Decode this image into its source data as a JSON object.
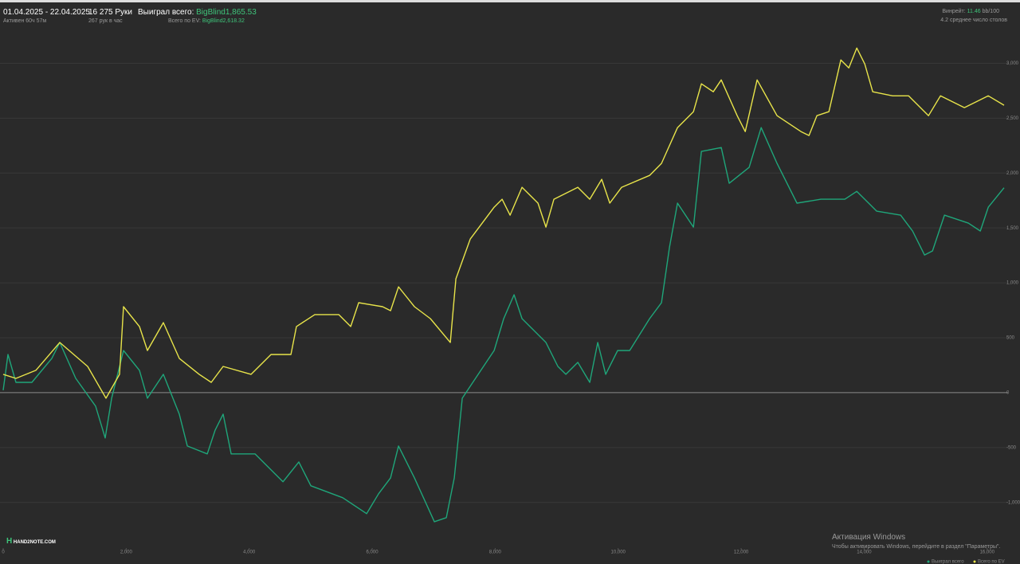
{
  "header": {
    "date_range": "01.04.2025 - 22.04.2025",
    "active": "Активен 60ч 57м",
    "hands": "16 275 Руки",
    "hands_per_hour": "267 рук в час",
    "won_label": "Выиграл всего:",
    "won_value": "BigBlind1,865.53",
    "ev_label": "Всего по EV:",
    "ev_value": "BigBlind2,618.32",
    "winrate_label": "Винрейт:",
    "winrate_value": "11.46",
    "winrate_unit": "bb/100",
    "tables": "4.2 среднее число столов"
  },
  "chart_data": {
    "type": "line",
    "xlim": [
      0,
      16340
    ],
    "ylim": [
      -1430,
      3250
    ],
    "xticks": [
      0,
      {
        "value": 2000,
        "label": "2,000"
      },
      {
        "value": 4000,
        "label": "4,000"
      },
      {
        "value": 6000,
        "label": "6,000"
      },
      {
        "value": 8000,
        "label": "8,000"
      },
      {
        "value": 10000,
        "label": "10,000"
      },
      {
        "value": 12000,
        "label": "12,000"
      },
      {
        "value": 14000,
        "label": "14,000"
      },
      {
        "value": 16000,
        "label": "16,000"
      }
    ],
    "yticks": [
      {
        "value": -1000,
        "label": "-1,000"
      },
      -500,
      0,
      500,
      {
        "value": 1000,
        "label": "1,000"
      },
      {
        "value": 1500,
        "label": "1,500"
      },
      {
        "value": 2000,
        "label": "2,000"
      },
      {
        "value": 2500,
        "label": "2,500"
      },
      {
        "value": 3000,
        "label": "3,000"
      }
    ],
    "grid": true,
    "series": [
      {
        "name": "Выиграл всего",
        "color": "#1fa67a",
        "x": [
          0,
          78,
          207,
          467,
          791,
          920,
          1179,
          1503,
          1659,
          1763,
          1957,
          2216,
          2346,
          2605,
          2864,
          2994,
          3318,
          3447,
          3577,
          3707,
          4095,
          4549,
          4808,
          5003,
          5521,
          5910,
          6104,
          6299,
          6428,
          6688,
          7011,
          7206,
          7335,
          7465,
          7724,
          7984,
          8139,
          8307,
          8437,
          8826,
          9020,
          9150,
          9344,
          9539,
          9668,
          9798,
          9992,
          10187,
          10511,
          10705,
          10835,
          10965,
          11224,
          11354,
          11677,
          11806,
          12130,
          12325,
          12584,
          12908,
          13297,
          13686,
          13880,
          14204,
          14593,
          14788,
          14982,
          15112,
          15306,
          15695,
          15889,
          16019,
          16275
        ],
        "values": [
          22,
          348,
          94,
          94,
          312,
          457,
          131,
          -123,
          -413,
          -51,
          384,
          203,
          -51,
          167,
          -196,
          -486,
          -558,
          -341,
          -196,
          -558,
          -558,
          -812,
          -631,
          -848,
          -957,
          -1102,
          -921,
          -776,
          -486,
          -776,
          -1175,
          -1138,
          -776,
          -51,
          167,
          384,
          674,
          892,
          674,
          457,
          239,
          167,
          276,
          94,
          457,
          167,
          384,
          384,
          674,
          819,
          1327,
          1726,
          1508,
          2197,
          2233,
          1907,
          2052,
          2414,
          2088,
          1726,
          1762,
          1762,
          1834,
          1653,
          1617,
          1472,
          1254,
          1291,
          1617,
          1544,
          1472,
          1689,
          1866
        ]
      },
      {
        "name": "Всего по EV",
        "color": "#e8e44a",
        "x": [
          0,
          207,
          531,
          920,
          1374,
          1672,
          1892,
          1957,
          2216,
          2346,
          2605,
          2864,
          3188,
          3383,
          3577,
          4031,
          4355,
          4679,
          4769,
          5067,
          5456,
          5651,
          5780,
          6169,
          6299,
          6428,
          6688,
          6947,
          7271,
          7361,
          7595,
          7984,
          8113,
          8243,
          8437,
          8696,
          8826,
          8955,
          9344,
          9539,
          9733,
          9863,
          10057,
          10511,
          10705,
          10965,
          11224,
          11354,
          11547,
          11677,
          11936,
          12066,
          12260,
          12584,
          12973,
          13103,
          13232,
          13427,
          13621,
          13751,
          13880,
          14010,
          14140,
          14463,
          14723,
          15047,
          15241,
          15630,
          16019,
          16275
        ],
        "values": [
          167,
          130,
          203,
          457,
          239,
          -51,
          167,
          783,
          602,
          384,
          638,
          312,
          167,
          94,
          239,
          167,
          348,
          348,
          602,
          711,
          711,
          602,
          819,
          783,
          747,
          964,
          783,
          674,
          457,
          1037,
          1399,
          1689,
          1762,
          1617,
          1871,
          1726,
          1508,
          1762,
          1871,
          1762,
          1943,
          1726,
          1871,
          1979,
          2088,
          2414,
          2559,
          2813,
          2741,
          2849,
          2523,
          2378,
          2849,
          2523,
          2378,
          2342,
          2523,
          2559,
          3031,
          2958,
          3139,
          2994,
          2741,
          2704,
          2704,
          2523,
          2704,
          2596,
          2704,
          2618
        ]
      }
    ]
  },
  "logo": "HAND2NOTE.COM",
  "watermark": {
    "title": "Активация Windows",
    "text": "Чтобы активировать Windows, перейдите в раздел \"Параметры\"."
  }
}
